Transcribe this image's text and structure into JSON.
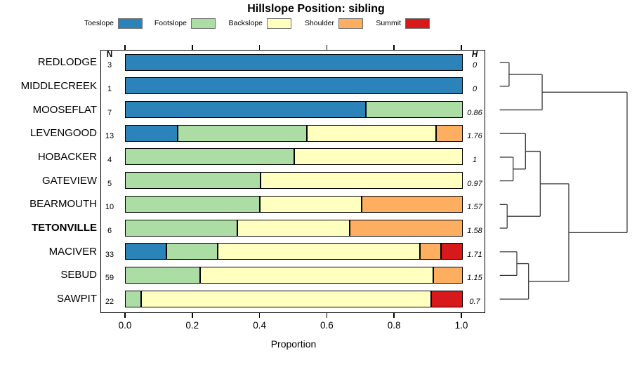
{
  "title": "Hillslope Position: sibling",
  "legend": {
    "items": [
      {
        "label": "Toeslope",
        "color": "#2B83BA"
      },
      {
        "label": "Footslope",
        "color": "#ABDDA4"
      },
      {
        "label": "Backslope",
        "color": "#FFFFBF"
      },
      {
        "label": "Shoulder",
        "color": "#FDAE61"
      },
      {
        "label": "Summit",
        "color": "#D7191C"
      }
    ]
  },
  "table_headers": {
    "n": "N",
    "h": "H"
  },
  "axis": {
    "xlabel": "Proportion",
    "x_ticks": [
      "0.0",
      "0.2",
      "0.4",
      "0.6",
      "0.8",
      "1.0"
    ],
    "x_tick_values": [
      0,
      0.2,
      0.4,
      0.6,
      0.8,
      1.0
    ],
    "xlim": [
      0,
      1
    ]
  },
  "chart_data": {
    "type": "bar",
    "variant": "stacked-horizontal",
    "title": "Hillslope Position: sibling",
    "xlabel": "Proportion",
    "xlim": [
      0,
      1
    ],
    "legend_position": "top",
    "categories": [
      "REDLODGE",
      "MIDDLECREEK",
      "MOOSEFLAT",
      "LEVENGOOD",
      "HOBACKER",
      "GATEVIEW",
      "BEARMOUTH",
      "TETONVILLE",
      "MACIVER",
      "SEBUD",
      "SAWPIT"
    ],
    "emphasized_category": "TETONVILLE",
    "series": [
      {
        "name": "Toeslope",
        "color": "#2B83BA",
        "values": [
          1,
          1,
          0.714,
          0.154,
          0,
          0,
          0,
          0,
          0.121,
          0,
          0
        ]
      },
      {
        "name": "Footslope",
        "color": "#ABDDA4",
        "values": [
          0,
          0,
          0.286,
          0.385,
          0.5,
          0.4,
          0.4,
          0.333,
          0.152,
          0.22,
          0.045
        ]
      },
      {
        "name": "Backslope",
        "color": "#FFFFBF",
        "values": [
          0,
          0,
          0,
          0.385,
          0.5,
          0.6,
          0.3,
          0.333,
          0.606,
          0.695,
          0.864
        ]
      },
      {
        "name": "Shoulder",
        "color": "#FDAE61",
        "values": [
          0,
          0,
          0,
          0.077,
          0,
          0,
          0.3,
          0.333,
          0.061,
          0.085,
          0
        ]
      },
      {
        "name": "Summit",
        "color": "#D7191C",
        "values": [
          0,
          0,
          0,
          0,
          0,
          0,
          0,
          0,
          0.061,
          0,
          0.091
        ]
      }
    ],
    "n_values": [
      3,
      1,
      7,
      13,
      4,
      5,
      10,
      6,
      33,
      59,
      22
    ],
    "h_values": [
      "0",
      "0",
      "0.86",
      "1.76",
      "1",
      "0.97",
      "1.57",
      "1.58",
      "1.71",
      "1.15",
      "0.7"
    ]
  },
  "dendrogram": {
    "orientation": "right",
    "heights_normalized": true,
    "tree": {
      "h": 1.0,
      "children": [
        {
          "h": 0.333,
          "children": [
            {
              "h": 0.073,
              "children": [
                {
                  "leaf": "REDLODGE"
                },
                {
                  "leaf": "MIDDLECREEK"
                }
              ]
            },
            {
              "leaf": "MOOSEFLAT"
            }
          ]
        },
        {
          "h": 0.542,
          "children": [
            {
              "h": 0.318,
              "children": [
                {
                  "h": 0.202,
                  "children": [
                    {
                      "leaf": "LEVENGOOD"
                    },
                    {
                      "h": 0.105,
                      "children": [
                        {
                          "leaf": "HOBACKER"
                        },
                        {
                          "leaf": "GATEVIEW"
                        }
                      ]
                    }
                  ]
                },
                {
                  "h": 0.058,
                  "children": [
                    {
                      "leaf": "BEARMOUTH"
                    },
                    {
                      "leaf": "TETONVILLE"
                    }
                  ]
                }
              ]
            },
            {
              "h": 0.226,
              "children": [
                {
                  "h": 0.134,
                  "children": [
                    {
                      "leaf": "MACIVER"
                    },
                    {
                      "leaf": "SEBUD"
                    }
                  ]
                },
                {
                  "leaf": "SAWPIT"
                }
              ]
            }
          ]
        }
      ]
    }
  }
}
